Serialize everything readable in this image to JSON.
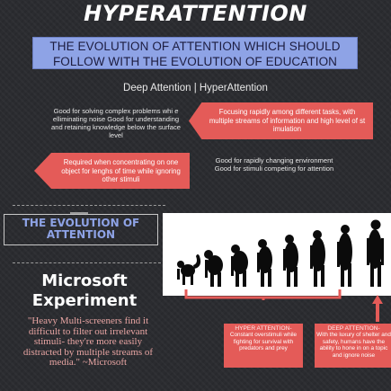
{
  "title": "HYPERATTENTION",
  "subtitle": "THE EVOLUTION OF ATTENTION WHICH SHOULD FOLLOW WITH THE EVOLUTION OF EDUCATION",
  "deep_hyper_label": "Deep Attention | HyperAttention",
  "deep_attention": {
    "text_1": "Good for solving complex problems whi e elliminating noise Good for understanding and retaining knowledge below the surface level",
    "arrow_text": "Required when concentrating on one object for lenghs of time while ignoring other stimuli"
  },
  "hyper_attention": {
    "arrow_text": "Focusing rapidly among different tasks, with multiple streams of information and high level of st imulation",
    "text_2": "Good for rapidly changing environment Good for stimuli competing for attention"
  },
  "evolution_heading": "THE EVOLUTION OF ATTENTION",
  "microsoft": {
    "title": "Microsoft Experiment",
    "quote": "\"Heavy Multi-screeners find it difficult to filter out irrelevant stimuli- they're more easily distracted by multiple streams of media.\" ~Microsoft"
  },
  "evolution_boxes": {
    "hyper_title": "HYPER ATTENTION-",
    "hyper_text": "Constant overstimuli while fighting for survival with predators and prey",
    "deep_title": "DEEP ATTENTION-",
    "deep_text": "With the luxury of shelter and safety, humans have the ability to hone in on a topic and ignore noise"
  },
  "colors": {
    "accent_red": "#e45b58",
    "accent_blue": "#8ea3e6",
    "background": "#2b2c30"
  }
}
